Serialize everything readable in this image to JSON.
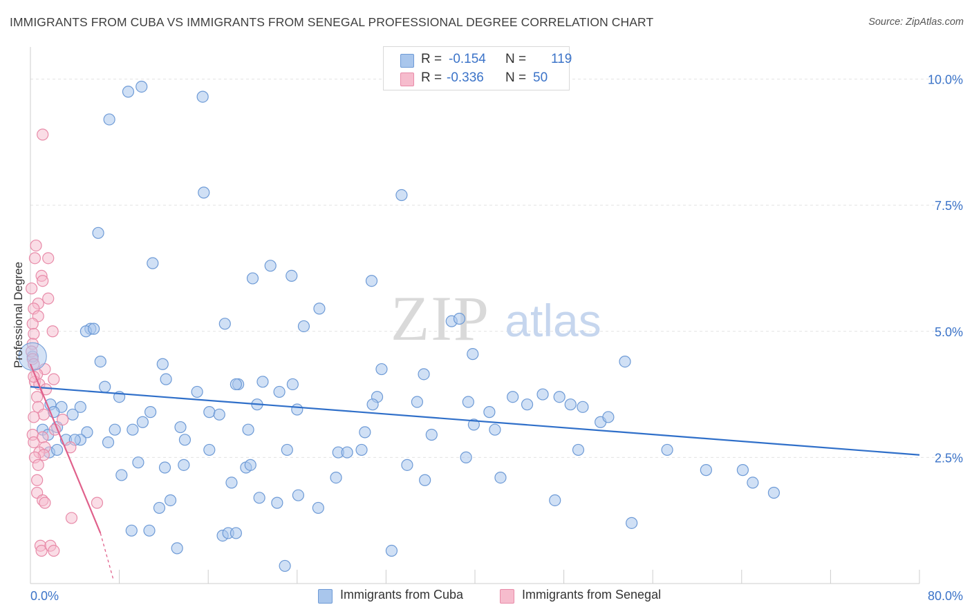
{
  "header": {
    "title": "IMMIGRANTS FROM CUBA VS IMMIGRANTS FROM SENEGAL PROFESSIONAL DEGREE CORRELATION CHART",
    "source": "Source: ZipAtlas.com"
  },
  "watermark": {
    "zip": "ZIP",
    "atlas": "atlas"
  },
  "legend": {
    "r_label": "R =",
    "n_label": "N =",
    "cuba": {
      "r": "-0.154",
      "n": "119"
    },
    "senegal": {
      "r": "-0.336",
      "n": "50"
    }
  },
  "colors": {
    "cuba_fill": "#a9c6ec",
    "cuba_stroke": "#6d9ad6",
    "cuba_line": "#2f6fc9",
    "senegal_fill": "#f6bccd",
    "senegal_stroke": "#e88aa8",
    "senegal_line": "#e0608b",
    "tick_label": "#3b73c8",
    "grid": "#e2e2e2"
  },
  "chart_data": {
    "type": "scatter",
    "title": "IMMIGRANTS FROM CUBA VS IMMIGRANTS FROM SENEGAL PROFESSIONAL DEGREE CORRELATION CHART",
    "xlabel": "",
    "ylabel": "Professional Degree",
    "xlim": [
      0,
      80
    ],
    "ylim": [
      0,
      10.5
    ],
    "x_tick_labels": [
      "0.0%",
      "80.0%"
    ],
    "y_tick_labels": [
      "2.5%",
      "5.0%",
      "7.5%",
      "10.0%"
    ],
    "y_ticks": [
      2.5,
      5.0,
      7.5,
      10.0
    ],
    "x_minor_ticks": [
      0,
      8,
      16,
      24,
      32,
      40,
      48,
      56,
      64,
      72,
      80
    ],
    "grid": true,
    "legend_position": "top-center",
    "series": [
      {
        "name": "Immigrants from Cuba",
        "R": -0.154,
        "N": 119,
        "trend": {
          "x": [
            0,
            80
          ],
          "y": [
            3.9,
            2.55
          ]
        },
        "points": [
          [
            8.8,
            9.75
          ],
          [
            10.0,
            9.85
          ],
          [
            15.5,
            9.65
          ],
          [
            7.1,
            9.2
          ],
          [
            15.6,
            7.75
          ],
          [
            33.4,
            7.7
          ],
          [
            6.1,
            6.95
          ],
          [
            11.0,
            6.35
          ],
          [
            21.6,
            6.3
          ],
          [
            23.5,
            6.1
          ],
          [
            20.0,
            6.05
          ],
          [
            30.7,
            6.0
          ],
          [
            26.0,
            5.45
          ],
          [
            17.5,
            5.15
          ],
          [
            24.6,
            5.1
          ],
          [
            37.9,
            5.2
          ],
          [
            38.6,
            5.25
          ],
          [
            5.4,
            5.05
          ],
          [
            5.0,
            5.0
          ],
          [
            5.7,
            5.05
          ],
          [
            39.8,
            4.55
          ],
          [
            6.3,
            4.4
          ],
          [
            11.9,
            4.35
          ],
          [
            31.6,
            4.25
          ],
          [
            53.5,
            4.4
          ],
          [
            12.2,
            4.05
          ],
          [
            35.4,
            4.15
          ],
          [
            6.7,
            3.9
          ],
          [
            18.7,
            3.95
          ],
          [
            18.5,
            3.95
          ],
          [
            20.9,
            4.0
          ],
          [
            23.6,
            3.95
          ],
          [
            22.4,
            3.8
          ],
          [
            15.0,
            3.8
          ],
          [
            8.0,
            3.7
          ],
          [
            31.2,
            3.7
          ],
          [
            34.8,
            3.6
          ],
          [
            39.4,
            3.6
          ],
          [
            43.4,
            3.7
          ],
          [
            46.1,
            3.75
          ],
          [
            47.6,
            3.7
          ],
          [
            44.7,
            3.55
          ],
          [
            48.6,
            3.55
          ],
          [
            49.7,
            3.5
          ],
          [
            30.8,
            3.55
          ],
          [
            20.4,
            3.55
          ],
          [
            1.8,
            3.55
          ],
          [
            2.8,
            3.5
          ],
          [
            4.5,
            3.5
          ],
          [
            2.1,
            3.4
          ],
          [
            3.8,
            3.35
          ],
          [
            10.8,
            3.4
          ],
          [
            16.1,
            3.4
          ],
          [
            17.0,
            3.35
          ],
          [
            41.3,
            3.4
          ],
          [
            24.0,
            3.45
          ],
          [
            10.1,
            3.2
          ],
          [
            39.9,
            3.15
          ],
          [
            51.3,
            3.2
          ],
          [
            52.0,
            3.3
          ],
          [
            1.1,
            3.05
          ],
          [
            2.4,
            3.1
          ],
          [
            5.1,
            3.0
          ],
          [
            7.6,
            3.05
          ],
          [
            9.2,
            3.05
          ],
          [
            13.5,
            3.1
          ],
          [
            19.6,
            3.05
          ],
          [
            30.1,
            3.0
          ],
          [
            41.8,
            3.05
          ],
          [
            36.1,
            2.95
          ],
          [
            1.6,
            2.95
          ],
          [
            3.2,
            2.85
          ],
          [
            4.5,
            2.85
          ],
          [
            4.0,
            2.85
          ],
          [
            7.0,
            2.8
          ],
          [
            13.9,
            2.85
          ],
          [
            16.1,
            2.65
          ],
          [
            23.1,
            2.65
          ],
          [
            27.7,
            2.6
          ],
          [
            28.5,
            2.6
          ],
          [
            29.8,
            2.65
          ],
          [
            49.3,
            2.65
          ],
          [
            57.3,
            2.65
          ],
          [
            1.7,
            2.6
          ],
          [
            2.4,
            2.65
          ],
          [
            9.7,
            2.4
          ],
          [
            12.1,
            2.3
          ],
          [
            13.8,
            2.35
          ],
          [
            19.4,
            2.3
          ],
          [
            19.8,
            2.35
          ],
          [
            33.9,
            2.35
          ],
          [
            39.2,
            2.5
          ],
          [
            60.8,
            2.25
          ],
          [
            64.1,
            2.25
          ],
          [
            8.2,
            2.15
          ],
          [
            18.1,
            2.0
          ],
          [
            27.5,
            2.1
          ],
          [
            35.5,
            2.05
          ],
          [
            42.3,
            2.1
          ],
          [
            65.0,
            2.0
          ],
          [
            66.9,
            1.8
          ],
          [
            24.1,
            1.75
          ],
          [
            20.6,
            1.7
          ],
          [
            22.2,
            1.6
          ],
          [
            12.6,
            1.65
          ],
          [
            11.6,
            1.5
          ],
          [
            25.9,
            1.5
          ],
          [
            47.2,
            1.65
          ],
          [
            54.1,
            1.2
          ],
          [
            9.1,
            1.05
          ],
          [
            10.7,
            1.05
          ],
          [
            17.3,
            0.95
          ],
          [
            17.8,
            1.0
          ],
          [
            18.5,
            1.0
          ],
          [
            13.2,
            0.7
          ],
          [
            32.5,
            0.65
          ],
          [
            22.9,
            0.35
          ],
          [
            0.2,
            4.5
          ]
        ]
      },
      {
        "name": "Immigrants from Senegal",
        "R": -0.336,
        "N": 50,
        "trend": {
          "x": [
            0,
            6.3
          ],
          "y": [
            4.35,
            1.0
          ]
        },
        "trend_dashed": {
          "x": [
            6.3,
            7.5
          ],
          "y": [
            1.0,
            0.05
          ]
        },
        "points": [
          [
            1.1,
            8.9
          ],
          [
            0.5,
            6.7
          ],
          [
            0.4,
            6.45
          ],
          [
            1.6,
            6.45
          ],
          [
            1.0,
            6.1
          ],
          [
            1.1,
            6.0
          ],
          [
            0.1,
            5.85
          ],
          [
            1.6,
            5.65
          ],
          [
            0.7,
            5.55
          ],
          [
            0.3,
            5.45
          ],
          [
            0.7,
            5.3
          ],
          [
            0.2,
            5.15
          ],
          [
            2.0,
            5.0
          ],
          [
            0.3,
            4.95
          ],
          [
            0.2,
            4.75
          ],
          [
            0.1,
            4.6
          ],
          [
            0.2,
            4.45
          ],
          [
            0.3,
            4.35
          ],
          [
            1.3,
            4.25
          ],
          [
            0.6,
            4.15
          ],
          [
            2.1,
            4.05
          ],
          [
            0.4,
            4.0
          ],
          [
            0.8,
            3.95
          ],
          [
            1.4,
            3.85
          ],
          [
            0.6,
            3.7
          ],
          [
            0.7,
            3.5
          ],
          [
            1.2,
            3.35
          ],
          [
            0.3,
            3.3
          ],
          [
            2.9,
            3.25
          ],
          [
            2.2,
            3.05
          ],
          [
            0.2,
            2.95
          ],
          [
            1.1,
            2.9
          ],
          [
            0.3,
            2.8
          ],
          [
            1.3,
            2.7
          ],
          [
            3.6,
            2.7
          ],
          [
            0.8,
            2.6
          ],
          [
            1.2,
            2.55
          ],
          [
            0.4,
            2.5
          ],
          [
            0.7,
            2.35
          ],
          [
            0.6,
            2.05
          ],
          [
            0.6,
            1.8
          ],
          [
            1.1,
            1.65
          ],
          [
            1.3,
            1.6
          ],
          [
            6.0,
            1.6
          ],
          [
            3.7,
            1.3
          ],
          [
            0.9,
            0.75
          ],
          [
            1.0,
            0.65
          ],
          [
            1.8,
            0.75
          ],
          [
            2.1,
            0.65
          ],
          [
            0.3,
            4.1
          ]
        ]
      }
    ]
  },
  "bottom_legend": {
    "cuba": "Immigrants from Cuba",
    "senegal": "Immigrants from Senegal"
  }
}
